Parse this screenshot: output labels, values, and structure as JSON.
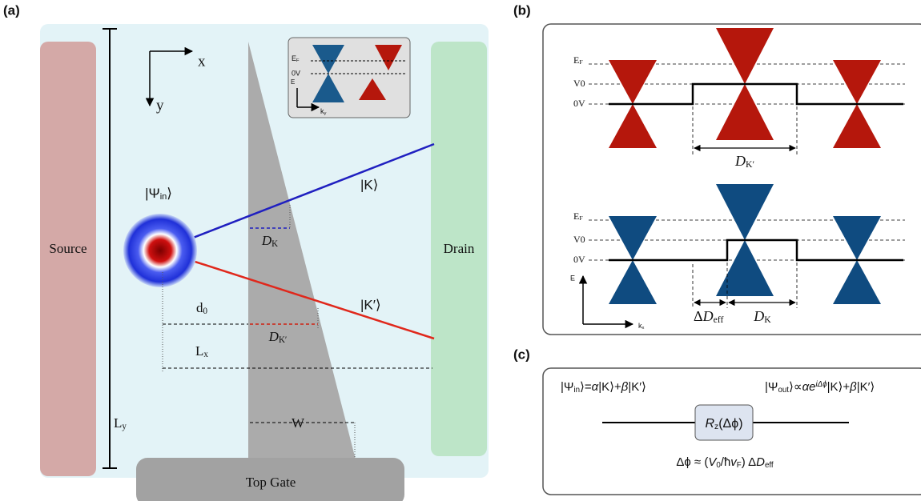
{
  "panel_a": {
    "label": "(a)",
    "axis_x": "x",
    "axis_y": "y",
    "source": "Source",
    "drain": "Drain",
    "top_gate": "Top Gate",
    "psi_in": [
      {
        "text": "|Ψ"
      },
      {
        "text": "in",
        "style": "sub"
      },
      {
        "text": "⟩"
      }
    ],
    "ket_k": "|K⟩",
    "ket_kp": "|K′⟩",
    "d_k": [
      {
        "text": "D",
        "style": "italic"
      },
      {
        "text": "K",
        "style": "sub"
      }
    ],
    "d_kp": [
      {
        "text": "D",
        "style": "italic"
      },
      {
        "text": "K′",
        "style": "sub"
      }
    ],
    "d0": [
      {
        "text": "d"
      },
      {
        "text": "0",
        "style": "sub"
      }
    ],
    "lx": [
      {
        "text": "L"
      },
      {
        "text": "x",
        "style": "sub"
      }
    ],
    "ly": [
      {
        "text": "L"
      },
      {
        "text": "y",
        "style": "sub"
      }
    ],
    "w": "W",
    "inset": {
      "ef": [
        {
          "text": "E"
        },
        {
          "text": "F",
          "style": "sub"
        }
      ],
      "zero": "0V",
      "e": "E",
      "k": [
        {
          "text": "k"
        },
        {
          "text": "y",
          "style": "sub"
        }
      ]
    }
  },
  "panel_b": {
    "label": "(b)",
    "top": {
      "ef": [
        {
          "text": "E"
        },
        {
          "text": "F",
          "style": "sub"
        }
      ],
      "v0": "V0",
      "zero": "0V",
      "d_kp": [
        {
          "text": "D",
          "style": "italic"
        },
        {
          "text": "K′",
          "style": "sub"
        }
      ]
    },
    "bottom": {
      "ef": [
        {
          "text": "E"
        },
        {
          "text": "F",
          "style": "sub"
        }
      ],
      "v0": "V0",
      "zero": "0V",
      "d_eff": [
        {
          "text": "Δ"
        },
        {
          "text": "D",
          "style": "italic"
        },
        {
          "text": "eff",
          "style": "sub"
        }
      ],
      "d_k": [
        {
          "text": "D",
          "style": "italic"
        },
        {
          "text": "K",
          "style": "sub"
        }
      ]
    },
    "e": "E",
    "k": [
      {
        "text": "k"
      },
      {
        "text": "x",
        "style": "sub"
      }
    ]
  },
  "panel_c": {
    "label": "(c)",
    "psi_in": [
      {
        "text": "|Ψ"
      },
      {
        "text": "in",
        "style": "sub"
      },
      {
        "text": "⟩="
      },
      {
        "text": "α",
        "style": "italic"
      },
      {
        "text": "|K⟩+"
      },
      {
        "text": "β",
        "style": "italic"
      },
      {
        "text": "|K′⟩"
      }
    ],
    "psi_out": [
      {
        "text": "|Ψ"
      },
      {
        "text": "out",
        "style": "sub"
      },
      {
        "text": "⟩∝"
      },
      {
        "text": "α",
        "style": "italic"
      },
      {
        "text": "e",
        "style": "italic"
      },
      {
        "text": "iΔϕ",
        "style": "sup"
      },
      {
        "text": "|K⟩+"
      },
      {
        "text": "β",
        "style": "italic"
      },
      {
        "text": "|K′⟩"
      }
    ],
    "gate": [
      {
        "text": "R",
        "style": "italic"
      },
      {
        "text": "z",
        "style": "sub"
      },
      {
        "text": "(Δϕ)"
      }
    ],
    "phase": [
      {
        "text": "Δϕ ≈ ("
      },
      {
        "text": "V",
        "style": "italic"
      },
      {
        "text": "0",
        "style": "sub"
      },
      {
        "text": "/ħ"
      },
      {
        "text": "v",
        "style": "italic"
      },
      {
        "text": "F",
        "style": "sub"
      },
      {
        "text": ") Δ"
      },
      {
        "text": "D",
        "style": "italic"
      },
      {
        "text": "eff",
        "style": "sub"
      }
    ]
  }
}
